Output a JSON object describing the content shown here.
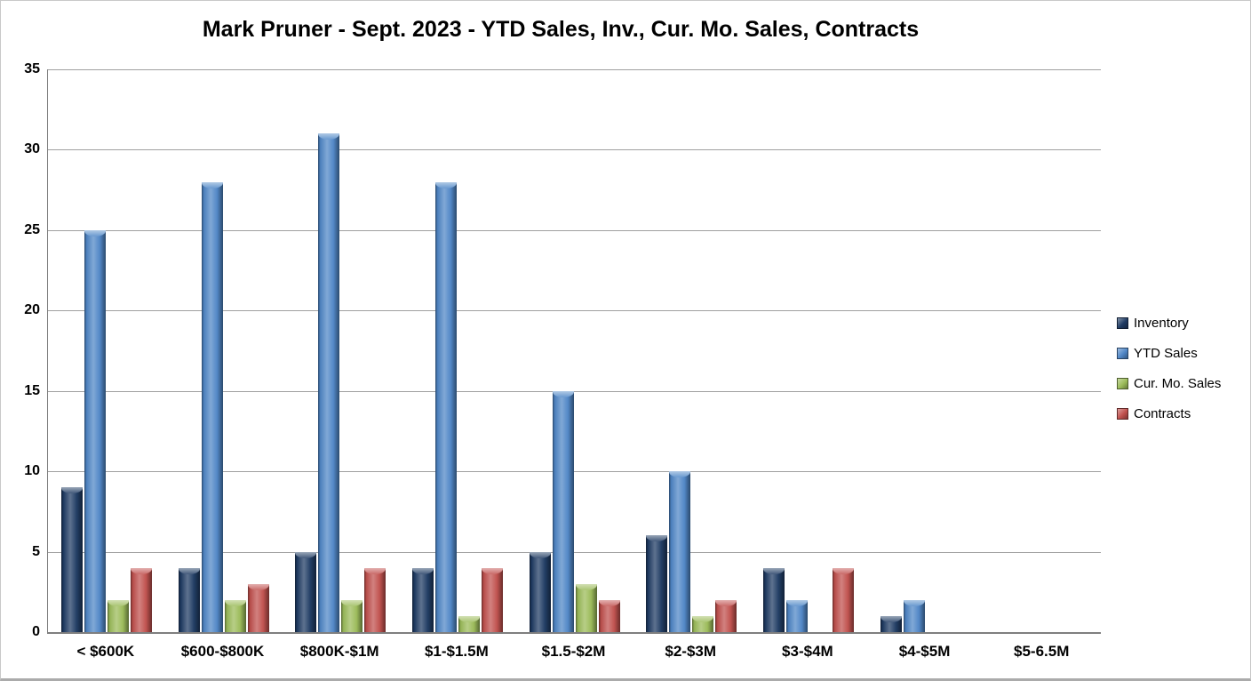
{
  "title": "Mark Pruner - Sept. 2023 - YTD Sales, Inv., Cur. Mo. Sales, Contracts",
  "chart_data": {
    "type": "bar",
    "title": "Mark Pruner - Sept. 2023 - YTD Sales, Inv., Cur. Mo. Sales, Contracts",
    "categories": [
      "< $600K",
      "$600-$800K",
      "$800K-$1M",
      "$1-$1.5M",
      "$1.5-$2M",
      "$2-$3M",
      "$3-$4M",
      "$4-$5M",
      "$5-6.5M"
    ],
    "series": [
      {
        "name": "Inventory",
        "color": "#1F3B63",
        "values": [
          9,
          4,
          5,
          4,
          5,
          6,
          4,
          1,
          0
        ]
      },
      {
        "name": "YTD Sales",
        "color": "#4F86C6",
        "values": [
          25,
          28,
          31,
          28,
          15,
          10,
          2,
          2,
          0
        ]
      },
      {
        "name": "Cur. Mo. Sales",
        "color": "#9BBB59",
        "values": [
          2,
          2,
          2,
          1,
          3,
          1,
          0,
          0,
          0
        ]
      },
      {
        "name": "Contracts",
        "color": "#C0504D",
        "values": [
          4,
          3,
          4,
          4,
          2,
          2,
          4,
          0,
          0
        ]
      }
    ],
    "xlabel": "",
    "ylabel": "",
    "ylim": [
      0,
      35
    ],
    "yticks": [
      0,
      5,
      10,
      15,
      20,
      25,
      30,
      35
    ],
    "grid": "horizontal",
    "legend_position": "right",
    "gridline_color": "#a0a0a0",
    "axis_color": "#7f7f7f"
  }
}
